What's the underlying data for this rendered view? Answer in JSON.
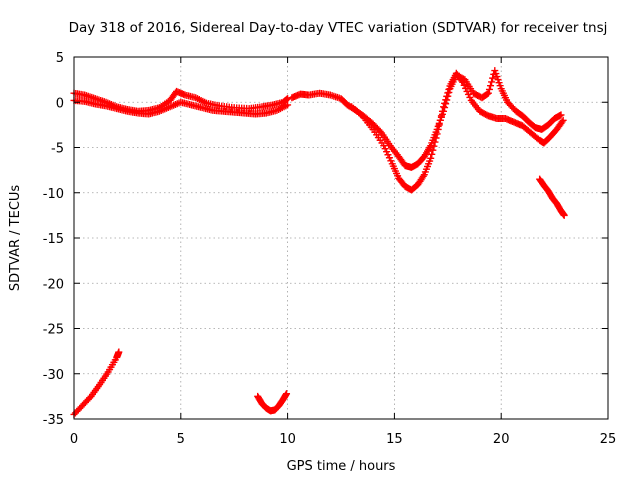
{
  "chart_data": {
    "type": "scatter",
    "title": "Day 318 of 2016, Sidereal Day-to-day VTEC variation (SDTVAR) for receiver tnsj",
    "xlabel": "GPS time / hours",
    "ylabel": "SDTVAR / TECUs",
    "xlim": [
      0,
      25
    ],
    "ylim": [
      -35,
      5
    ],
    "xticks": [
      0,
      5,
      10,
      15,
      20,
      25
    ],
    "yticks": [
      5,
      0,
      -5,
      -10,
      -15,
      -20,
      -25,
      -30,
      -35
    ],
    "grid": true,
    "marker": "+",
    "color": "#ff0000",
    "series": [
      {
        "points": [
          [
            0.0,
            1.0
          ],
          [
            0.5,
            0.8
          ],
          [
            1.0,
            0.4
          ],
          [
            1.5,
            0.0
          ],
          [
            2.0,
            -0.5
          ],
          [
            2.5,
            -0.8
          ],
          [
            3.0,
            -1.0
          ],
          [
            3.5,
            -0.9
          ],
          [
            4.0,
            -0.6
          ],
          [
            4.5,
            0.2
          ],
          [
            4.8,
            1.2
          ],
          [
            5.2,
            0.8
          ],
          [
            5.7,
            0.5
          ],
          [
            6.2,
            -0.1
          ],
          [
            6.8,
            -0.4
          ],
          [
            7.5,
            -0.6
          ],
          [
            8.2,
            -0.7
          ],
          [
            8.8,
            -0.5
          ],
          [
            9.3,
            -0.3
          ],
          [
            9.8,
            0.0
          ],
          [
            10.0,
            0.4
          ]
        ]
      },
      {
        "points": [
          [
            0.0,
            0.2
          ],
          [
            0.5,
            0.1
          ],
          [
            1.0,
            -0.2
          ],
          [
            1.5,
            -0.4
          ],
          [
            2.0,
            -0.7
          ],
          [
            2.5,
            -1.0
          ],
          [
            3.0,
            -1.2
          ],
          [
            3.5,
            -1.3
          ],
          [
            4.0,
            -1.0
          ],
          [
            4.5,
            -0.5
          ],
          [
            5.0,
            0.0
          ],
          [
            5.5,
            -0.3
          ],
          [
            6.0,
            -0.6
          ],
          [
            6.5,
            -0.9
          ],
          [
            7.0,
            -1.0
          ],
          [
            7.5,
            -1.1
          ],
          [
            8.0,
            -1.2
          ],
          [
            8.5,
            -1.3
          ],
          [
            9.0,
            -1.2
          ],
          [
            9.5,
            -0.9
          ],
          [
            10.0,
            -0.3
          ]
        ]
      },
      {
        "points": [
          [
            10.2,
            0.5
          ],
          [
            10.6,
            0.9
          ],
          [
            11.0,
            0.8
          ],
          [
            11.5,
            1.0
          ],
          [
            12.0,
            0.8
          ],
          [
            12.5,
            0.4
          ],
          [
            12.8,
            -0.3
          ],
          [
            13.2,
            -0.9
          ],
          [
            13.6,
            -1.6
          ],
          [
            14.0,
            -2.4
          ],
          [
            14.4,
            -3.4
          ],
          [
            14.8,
            -4.8
          ],
          [
            15.2,
            -6.0
          ],
          [
            15.5,
            -7.0
          ],
          [
            15.8,
            -7.2
          ],
          [
            16.1,
            -6.8
          ],
          [
            16.4,
            -6.0
          ],
          [
            16.7,
            -4.8
          ],
          [
            17.0,
            -3.0
          ],
          [
            17.3,
            -1.0
          ],
          [
            17.6,
            1.5
          ],
          [
            17.9,
            3.0
          ],
          [
            18.3,
            2.5
          ],
          [
            18.7,
            1.0
          ],
          [
            19.1,
            0.5
          ],
          [
            19.4,
            1.0
          ],
          [
            19.7,
            3.5
          ],
          [
            20.0,
            1.5
          ],
          [
            20.3,
            0.0
          ],
          [
            20.7,
            -1.0
          ],
          [
            21.0,
            -1.5
          ],
          [
            21.3,
            -2.2
          ],
          [
            21.6,
            -2.8
          ],
          [
            21.9,
            -3.0
          ],
          [
            22.2,
            -2.5
          ],
          [
            22.5,
            -1.8
          ],
          [
            22.8,
            -1.4
          ]
        ]
      },
      {
        "points": [
          [
            13.0,
            -0.5
          ],
          [
            13.5,
            -1.5
          ],
          [
            14.0,
            -3.0
          ],
          [
            14.5,
            -4.8
          ],
          [
            14.9,
            -6.8
          ],
          [
            15.2,
            -8.4
          ],
          [
            15.5,
            -9.3
          ],
          [
            15.8,
            -9.7
          ],
          [
            16.1,
            -9.1
          ],
          [
            16.4,
            -8.0
          ],
          [
            16.7,
            -6.2
          ],
          [
            17.0,
            -3.5
          ],
          [
            17.3,
            -0.5
          ],
          [
            17.6,
            1.8
          ],
          [
            17.9,
            3.2
          ],
          [
            18.2,
            2.2
          ],
          [
            18.6,
            0.2
          ],
          [
            19.0,
            -1.0
          ],
          [
            19.4,
            -1.5
          ],
          [
            19.8,
            -1.8
          ],
          [
            20.2,
            -1.8
          ],
          [
            20.6,
            -2.2
          ],
          [
            21.0,
            -2.6
          ],
          [
            21.4,
            -3.4
          ],
          [
            21.8,
            -4.2
          ],
          [
            22.0,
            -4.5
          ],
          [
            22.3,
            -3.8
          ],
          [
            22.6,
            -3.0
          ],
          [
            22.9,
            -2.0
          ]
        ]
      },
      {
        "points": [
          [
            21.8,
            -8.5
          ],
          [
            22.0,
            -9.2
          ],
          [
            22.2,
            -9.8
          ],
          [
            22.4,
            -10.6
          ],
          [
            22.6,
            -11.2
          ],
          [
            22.8,
            -12.0
          ],
          [
            22.95,
            -12.5
          ]
        ]
      },
      {
        "points": [
          [
            0.0,
            -34.5
          ],
          [
            0.4,
            -33.5
          ],
          [
            0.8,
            -32.5
          ],
          [
            1.2,
            -31.2
          ],
          [
            1.6,
            -29.8
          ],
          [
            2.0,
            -28.2
          ],
          [
            2.1,
            -27.6
          ]
        ]
      },
      {
        "points": [
          [
            8.6,
            -32.5
          ],
          [
            8.8,
            -33.3
          ],
          [
            9.0,
            -33.8
          ],
          [
            9.2,
            -34.1
          ],
          [
            9.4,
            -34.0
          ],
          [
            9.6,
            -33.5
          ],
          [
            9.8,
            -32.8
          ],
          [
            9.95,
            -32.2
          ]
        ]
      }
    ]
  }
}
